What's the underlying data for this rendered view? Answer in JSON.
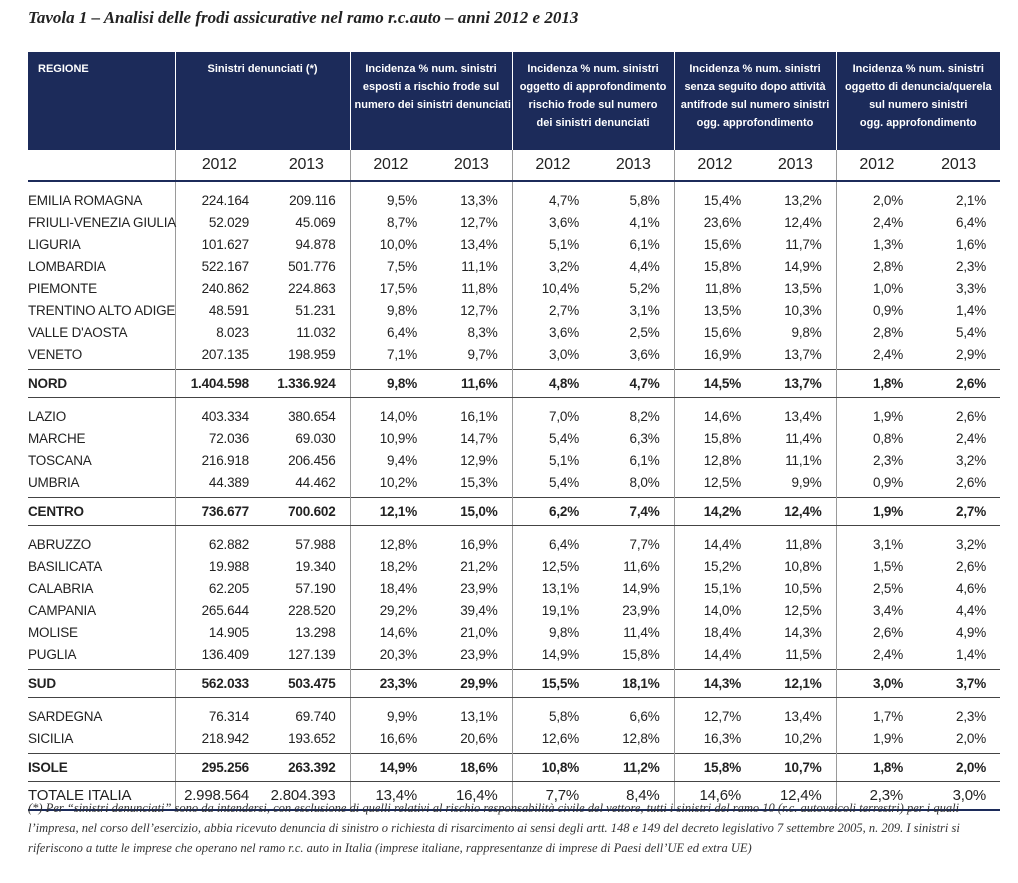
{
  "title": "Tavola 1 – Analisi delle frodi assicurative nel ramo r.c.auto – anni 2012 e 2013",
  "header": {
    "columns": [
      {
        "lines": [
          "REGIONE"
        ]
      },
      {
        "lines": [
          "Sinistri denunciati (*)"
        ]
      },
      {
        "lines": [
          "Incidenza % num. sinistri",
          "esposti a rischio frode sul",
          "numero dei sinistri denunciati"
        ]
      },
      {
        "lines": [
          "Incidenza % num. sinistri",
          "oggetto di approfondimento",
          "rischio frode sul numero",
          "dei sinistri denunciati"
        ]
      },
      {
        "lines": [
          "Incidenza % num. sinistri",
          "senza seguito dopo attività",
          "antifrode sul numero sinistri",
          "ogg. approfondimento"
        ]
      },
      {
        "lines": [
          "Incidenza % num. sinistri",
          "oggetto di denuncia/querela",
          "sul numero sinistri",
          "ogg. approfondimento"
        ]
      }
    ],
    "years": [
      "2012",
      "2013",
      "2012",
      "2013",
      "2012",
      "2013",
      "2012",
      "2013",
      "2012",
      "2013"
    ]
  },
  "groups": [
    {
      "rows": [
        [
          "EMILIA ROMAGNA",
          "224.164",
          "209.116",
          "9,5%",
          "13,3%",
          "4,7%",
          "5,8%",
          "15,4%",
          "13,2%",
          "2,0%",
          "2,1%"
        ],
        [
          "FRIULI-VENEZIA GIULIA",
          "52.029",
          "45.069",
          "8,7%",
          "12,7%",
          "3,6%",
          "4,1%",
          "23,6%",
          "12,4%",
          "2,4%",
          "6,4%"
        ],
        [
          "LIGURIA",
          "101.627",
          "94.878",
          "10,0%",
          "13,4%",
          "5,1%",
          "6,1%",
          "15,6%",
          "11,7%",
          "1,3%",
          "1,6%"
        ],
        [
          "LOMBARDIA",
          "522.167",
          "501.776",
          "7,5%",
          "11,1%",
          "3,2%",
          "4,4%",
          "15,8%",
          "14,9%",
          "2,8%",
          "2,3%"
        ],
        [
          "PIEMONTE",
          "240.862",
          "224.863",
          "17,5%",
          "11,8%",
          "10,4%",
          "5,2%",
          "11,8%",
          "13,5%",
          "1,0%",
          "3,3%"
        ],
        [
          "TRENTINO ALTO ADIGE",
          "48.591",
          "51.231",
          "9,8%",
          "12,7%",
          "2,7%",
          "3,1%",
          "13,5%",
          "10,3%",
          "0,9%",
          "1,4%"
        ],
        [
          "VALLE D'AOSTA",
          "8.023",
          "11.032",
          "6,4%",
          "8,3%",
          "3,6%",
          "2,5%",
          "15,6%",
          "9,8%",
          "2,8%",
          "5,4%"
        ],
        [
          "VENETO",
          "207.135",
          "198.959",
          "7,1%",
          "9,7%",
          "3,0%",
          "3,6%",
          "16,9%",
          "13,7%",
          "2,4%",
          "2,9%"
        ]
      ],
      "subtotal": [
        "NORD",
        "1.404.598",
        "1.336.924",
        "9,8%",
        "11,6%",
        "4,8%",
        "4,7%",
        "14,5%",
        "13,7%",
        "1,8%",
        "2,6%"
      ]
    },
    {
      "rows": [
        [
          "LAZIO",
          "403.334",
          "380.654",
          "14,0%",
          "16,1%",
          "7,0%",
          "8,2%",
          "14,6%",
          "13,4%",
          "1,9%",
          "2,6%"
        ],
        [
          "MARCHE",
          "72.036",
          "69.030",
          "10,9%",
          "14,7%",
          "5,4%",
          "6,3%",
          "15,8%",
          "11,4%",
          "0,8%",
          "2,4%"
        ],
        [
          "TOSCANA",
          "216.918",
          "206.456",
          "9,4%",
          "12,9%",
          "5,1%",
          "6,1%",
          "12,8%",
          "11,1%",
          "2,3%",
          "3,2%"
        ],
        [
          "UMBRIA",
          "44.389",
          "44.462",
          "10,2%",
          "15,3%",
          "5,4%",
          "8,0%",
          "12,5%",
          "9,9%",
          "0,9%",
          "2,6%"
        ]
      ],
      "subtotal": [
        "CENTRO",
        "736.677",
        "700.602",
        "12,1%",
        "15,0%",
        "6,2%",
        "7,4%",
        "14,2%",
        "12,4%",
        "1,9%",
        "2,7%"
      ]
    },
    {
      "rows": [
        [
          "ABRUZZO",
          "62.882",
          "57.988",
          "12,8%",
          "16,9%",
          "6,4%",
          "7,7%",
          "14,4%",
          "11,8%",
          "3,1%",
          "3,2%"
        ],
        [
          "BASILICATA",
          "19.988",
          "19.340",
          "18,2%",
          "21,2%",
          "12,5%",
          "11,6%",
          "15,2%",
          "10,8%",
          "1,5%",
          "2,6%"
        ],
        [
          "CALABRIA",
          "62.205",
          "57.190",
          "18,4%",
          "23,9%",
          "13,1%",
          "14,9%",
          "15,1%",
          "10,5%",
          "2,5%",
          "4,6%"
        ],
        [
          "CAMPANIA",
          "265.644",
          "228.520",
          "29,2%",
          "39,4%",
          "19,1%",
          "23,9%",
          "14,0%",
          "12,5%",
          "3,4%",
          "4,4%"
        ],
        [
          "MOLISE",
          "14.905",
          "13.298",
          "14,6%",
          "21,0%",
          "9,8%",
          "11,4%",
          "18,4%",
          "14,3%",
          "2,6%",
          "4,9%"
        ],
        [
          "PUGLIA",
          "136.409",
          "127.139",
          "20,3%",
          "23,9%",
          "14,9%",
          "15,8%",
          "14,4%",
          "11,5%",
          "2,4%",
          "1,4%"
        ]
      ],
      "subtotal": [
        "SUD",
        "562.033",
        "503.475",
        "23,3%",
        "29,9%",
        "15,5%",
        "18,1%",
        "14,3%",
        "12,1%",
        "3,0%",
        "3,7%"
      ]
    },
    {
      "rows": [
        [
          "SARDEGNA",
          "76.314",
          "69.740",
          "9,9%",
          "13,1%",
          "5,8%",
          "6,6%",
          "12,7%",
          "13,4%",
          "1,7%",
          "2,3%"
        ],
        [
          "SICILIA",
          "218.942",
          "193.652",
          "16,6%",
          "20,6%",
          "12,6%",
          "12,8%",
          "16,3%",
          "10,2%",
          "1,9%",
          "2,0%"
        ]
      ],
      "subtotal": [
        "ISOLE",
        "295.256",
        "263.392",
        "14,9%",
        "18,6%",
        "10,8%",
        "11,2%",
        "15,8%",
        "10,7%",
        "1,8%",
        "2,0%"
      ]
    }
  ],
  "total": [
    "TOTALE ITALIA",
    "2.998.564",
    "2.804.393",
    "13,4%",
    "16,4%",
    "7,7%",
    "8,4%",
    "14,6%",
    "12,4%",
    "2,3%",
    "3,0%"
  ],
  "footnote": {
    "lines": [
      "(*)  Per “sinistri denunciati” sono da intendersi, con esclusione di quelli relativi al rischio responsabilità civile del vettore, tutti i sinistri del ramo 10 (r.c. autoveicoli terrestri) per i quali",
      "l’impresa, nel corso dell’esercizio, abbia ricevuto denuncia di sinistro o richiesta di risarcimento ai sensi degli artt. 148 e 149 del decreto legislativo 7 settembre 2005, n. 209. I sinistri si",
      "riferiscono a tutte le imprese che operano nel ramo r.c. auto in Italia (imprese italiane, rappresentanze di imprese di Paesi dell’UE ed extra UE)"
    ]
  }
}
